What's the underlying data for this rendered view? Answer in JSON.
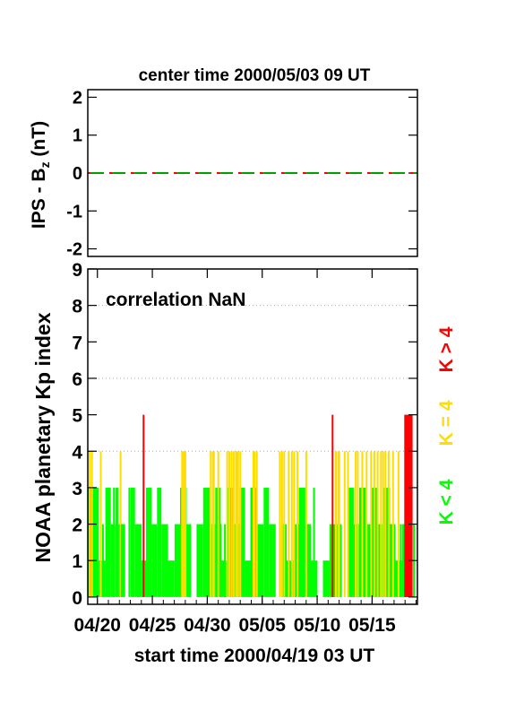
{
  "chart_data": [
    {
      "type": "line",
      "title": "center time 2000/05/03 09 UT",
      "ylabel_main": "IPS - B",
      "ylabel_sub": "z",
      "ylabel_unit": " (nT)",
      "ylim": [
        -2.2,
        2.2
      ],
      "yticks": [
        2,
        1,
        0,
        -1,
        -2
      ],
      "xlim": [
        0,
        30
      ],
      "series": [
        {
          "color": "#00a000",
          "dash": "18 6",
          "x": [
            0,
            30
          ],
          "values": [
            0,
            0
          ]
        },
        {
          "color": "#ff0000",
          "dash": "3 21",
          "x": [
            0,
            30
          ],
          "values": [
            0,
            0
          ]
        }
      ]
    },
    {
      "type": "bar",
      "ylabel": "NOAA planetary Kp index",
      "annotation": "correlation NaN",
      "xlabel": "start time 2000/04/19 03 UT",
      "xlim": [
        0,
        30
      ],
      "ylim": [
        -0.2,
        9
      ],
      "yticks": [
        0,
        1,
        2,
        3,
        4,
        5,
        6,
        7,
        8,
        9
      ],
      "gridlines": [
        4,
        6,
        8
      ],
      "xtick_labels": [
        {
          "label": "04/20",
          "day": 0.875
        },
        {
          "label": "04/25",
          "day": 5.875
        },
        {
          "label": "04/30",
          "day": 10.875
        },
        {
          "label": "05/05",
          "day": 15.875
        },
        {
          "label": "05/10",
          "day": 20.875
        },
        {
          "label": "05/15",
          "day": 25.875
        }
      ],
      "bin_days": 0.125,
      "legend": [
        {
          "label": "K > 4",
          "color": "#ff0000"
        },
        {
          "label": "K = 4",
          "color": "#ffdd00"
        },
        {
          "label": "K < 4",
          "color": "#00ff00"
        }
      ],
      "colors": {
        "low": "#00ff00",
        "mid": "#ffdd00",
        "high": "#ff0000"
      },
      "kp_segments": [
        [
          0.0,
          1.0,
          3
        ],
        [
          1.0,
          0.6,
          1
        ],
        [
          1.6,
          0.5,
          3
        ],
        [
          2.1,
          0.4,
          2
        ],
        [
          2.5,
          0.3,
          3
        ],
        [
          2.8,
          0.6,
          2
        ],
        [
          3.4,
          0.5,
          0
        ],
        [
          3.9,
          0.4,
          3
        ],
        [
          4.3,
          0.6,
          2
        ],
        [
          4.9,
          0.5,
          1
        ],
        [
          5.4,
          0.4,
          3
        ],
        [
          5.8,
          0.5,
          2
        ],
        [
          6.3,
          0.4,
          3
        ],
        [
          6.7,
          0.6,
          2
        ],
        [
          7.3,
          0.6,
          1
        ],
        [
          7.9,
          0.5,
          2
        ],
        [
          8.4,
          0.6,
          3
        ],
        [
          9.0,
          0.4,
          2
        ],
        [
          9.4,
          0.5,
          0
        ],
        [
          9.9,
          0.6,
          2
        ],
        [
          10.5,
          0.6,
          3
        ],
        [
          11.1,
          0.5,
          2
        ],
        [
          11.6,
          0.5,
          3
        ],
        [
          12.1,
          0.6,
          1
        ],
        [
          12.7,
          0.5,
          3
        ],
        [
          13.2,
          0.6,
          2
        ],
        [
          13.8,
          0.5,
          3
        ],
        [
          14.3,
          0.5,
          1
        ],
        [
          14.8,
          0.6,
          3
        ],
        [
          15.4,
          0.6,
          2
        ],
        [
          16.0,
          0.5,
          3
        ],
        [
          16.5,
          0.6,
          2
        ],
        [
          17.1,
          0.5,
          0
        ],
        [
          17.6,
          0.5,
          2
        ],
        [
          18.1,
          0.6,
          1
        ],
        [
          18.7,
          0.5,
          2
        ],
        [
          19.2,
          0.6,
          3
        ],
        [
          19.8,
          0.5,
          2
        ],
        [
          20.3,
          0.6,
          1
        ],
        [
          20.9,
          0.5,
          0
        ],
        [
          21.4,
          0.6,
          1
        ],
        [
          22.0,
          0.5,
          2
        ],
        [
          22.5,
          0.6,
          2
        ],
        [
          23.1,
          0.5,
          0
        ],
        [
          23.6,
          0.6,
          3
        ],
        [
          24.2,
          0.5,
          2
        ],
        [
          24.7,
          0.6,
          3
        ],
        [
          25.3,
          0.5,
          2
        ],
        [
          25.8,
          0.6,
          3
        ],
        [
          26.4,
          0.5,
          2
        ],
        [
          26.9,
          0.6,
          3
        ],
        [
          27.5,
          0.5,
          2
        ],
        [
          28.0,
          0.6,
          1
        ],
        [
          28.6,
          0.6,
          2
        ]
      ],
      "kp_spikes": [
        [
          0.1,
          4
        ],
        [
          0.3,
          4
        ],
        [
          0.8,
          2
        ],
        [
          1.1,
          4
        ],
        [
          1.3,
          2
        ],
        [
          1.9,
          2
        ],
        [
          2.3,
          3
        ],
        [
          2.9,
          4
        ],
        [
          3.0,
          2
        ],
        [
          3.7,
          3
        ],
        [
          4.0,
          1
        ],
        [
          4.5,
          2
        ],
        [
          5.0,
          5
        ],
        [
          5.3,
          3
        ],
        [
          5.6,
          3
        ],
        [
          8.5,
          4
        ],
        [
          8.6,
          4
        ],
        [
          8.7,
          4
        ],
        [
          8.8,
          4
        ],
        [
          9.2,
          2
        ],
        [
          11.1,
          4
        ],
        [
          11.3,
          4
        ],
        [
          11.4,
          4
        ],
        [
          11.8,
          4
        ],
        [
          12.0,
          2
        ],
        [
          12.4,
          2
        ],
        [
          12.6,
          4
        ],
        [
          12.8,
          4
        ],
        [
          13.0,
          4
        ],
        [
          13.2,
          4
        ],
        [
          13.4,
          4
        ],
        [
          13.5,
          4
        ],
        [
          13.6,
          4
        ],
        [
          13.8,
          4
        ],
        [
          15.0,
          4
        ],
        [
          15.1,
          4
        ],
        [
          15.3,
          4
        ],
        [
          16.6,
          2
        ],
        [
          17.4,
          4
        ],
        [
          17.6,
          4
        ],
        [
          17.8,
          4
        ],
        [
          18.2,
          4
        ],
        [
          18.5,
          4
        ],
        [
          18.7,
          4
        ],
        [
          19.0,
          4
        ],
        [
          19.5,
          2
        ],
        [
          19.8,
          4
        ],
        [
          20.5,
          3
        ],
        [
          22.2,
          5
        ],
        [
          22.5,
          4
        ],
        [
          22.7,
          4
        ],
        [
          22.8,
          4
        ],
        [
          23.3,
          4
        ],
        [
          23.6,
          4
        ],
        [
          24.0,
          2
        ],
        [
          24.3,
          4
        ],
        [
          24.5,
          4
        ],
        [
          24.9,
          4
        ],
        [
          25.3,
          4
        ],
        [
          25.7,
          4
        ],
        [
          26.0,
          4
        ],
        [
          26.3,
          4
        ],
        [
          26.6,
          4
        ],
        [
          26.8,
          4
        ],
        [
          27.0,
          4
        ],
        [
          27.3,
          4
        ],
        [
          27.7,
          4
        ],
        [
          28.2,
          4
        ],
        [
          28.4,
          2
        ],
        [
          28.8,
          5
        ],
        [
          28.9,
          5
        ],
        [
          29.0,
          5
        ],
        [
          29.1,
          5
        ],
        [
          29.2,
          5
        ],
        [
          29.3,
          5
        ],
        [
          29.4,
          5
        ],
        [
          29.6,
          2
        ]
      ]
    }
  ]
}
